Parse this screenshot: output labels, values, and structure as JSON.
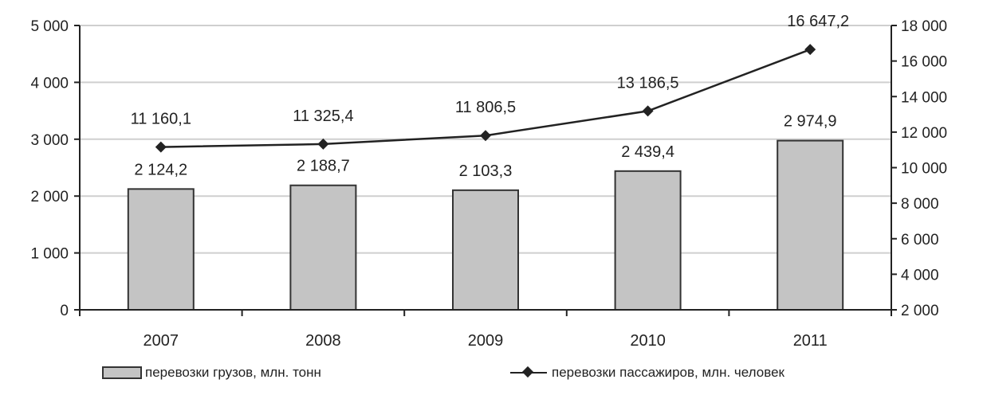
{
  "chart_data": {
    "type": "bar",
    "categories": [
      "2007",
      "2008",
      "2009",
      "2010",
      "2011"
    ],
    "series": [
      {
        "name": "перевозки грузов, млн. тонн",
        "type": "bar",
        "axis": "left",
        "values": [
          2124.2,
          2188.7,
          2103.3,
          2439.4,
          2974.9
        ],
        "labels": [
          "2 124,2",
          "2 188,7",
          "2 103,3",
          "2 439,4",
          "2 974,9"
        ]
      },
      {
        "name": "перевозки пассажиров, млн. человек",
        "type": "line",
        "axis": "right",
        "values": [
          11160.1,
          11325.4,
          11806.5,
          13186.5,
          16647.2
        ],
        "labels": [
          "11 160,1",
          "11 325,4",
          "11 806,5",
          "13 186,5",
          "16 647,2"
        ]
      }
    ],
    "y_left": {
      "range": [
        0,
        5000
      ],
      "ticks": [
        0,
        1000,
        2000,
        3000,
        4000,
        5000
      ],
      "tick_labels": [
        "0",
        "1 000",
        "2 000",
        "3 000",
        "4 000",
        "5 000"
      ]
    },
    "y_right": {
      "range": [
        2000,
        18000
      ],
      "ticks": [
        2000,
        4000,
        6000,
        8000,
        10000,
        12000,
        14000,
        16000,
        18000
      ],
      "tick_labels": [
        "2 000",
        "4 000",
        "6 000",
        "8 000",
        "10 000",
        "12 000",
        "14 000",
        "16 000",
        "18 000"
      ]
    },
    "title": "",
    "xlabel": "",
    "grid": true,
    "legend": "bottom",
    "colors": {
      "bar": "#c4c4c4",
      "bar_stroke": "#333333",
      "line": "#222222",
      "grid": "#cfcfcf",
      "axis": "#222222"
    }
  }
}
